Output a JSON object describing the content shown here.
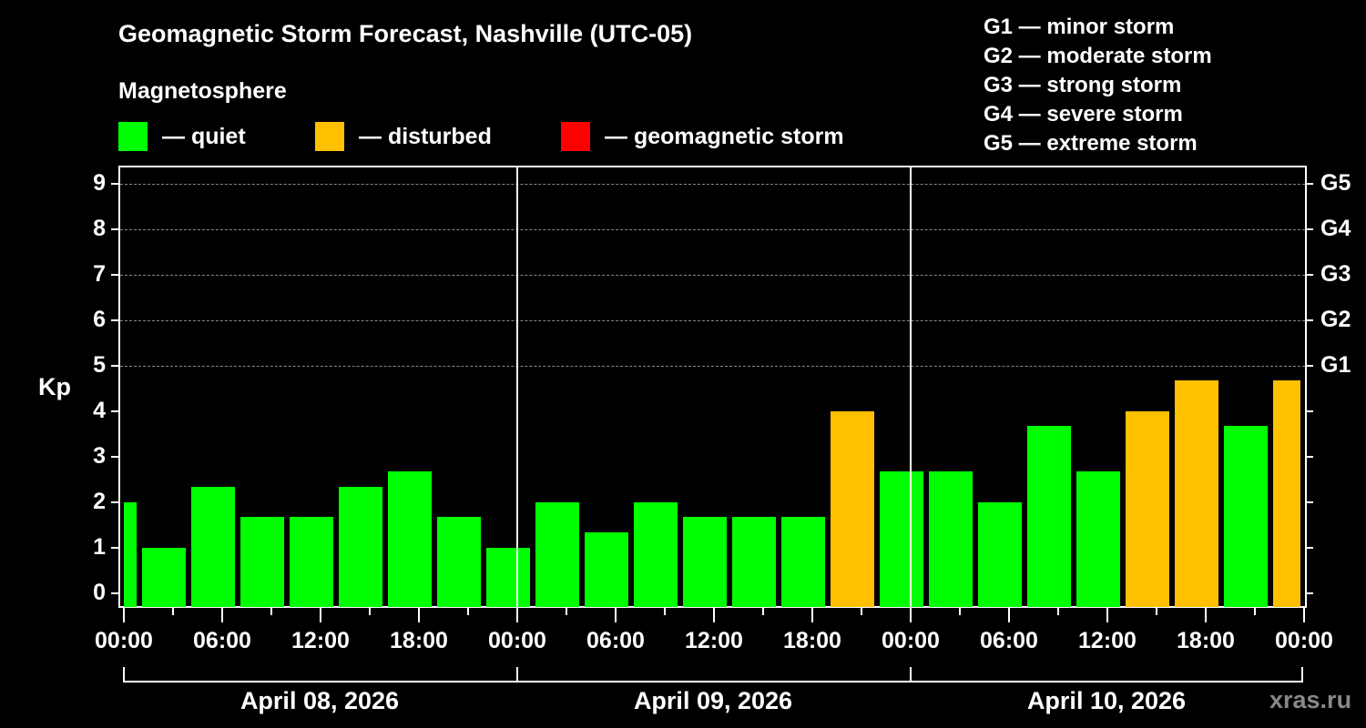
{
  "title": "Geomagnetic Storm Forecast, Nashville (UTC-05)",
  "subtitle": "Magnetosphere",
  "legend": [
    {
      "label": "— quiet",
      "color": "#00ff00"
    },
    {
      "label": "— disturbed",
      "color": "#ffc000"
    },
    {
      "label": "— geomagnetic storm",
      "color": "#ff0000"
    }
  ],
  "g_scale_legend": [
    "G1 — minor storm",
    "G2 — moderate storm",
    "G3 — strong storm",
    "G4 — severe storm",
    "G5 — extreme storm"
  ],
  "y_axis_label": "Kp",
  "watermark": "xras.ru",
  "chart_data": {
    "type": "bar",
    "title": "Geomagnetic Storm Forecast, Nashville (UTC-05)",
    "subtitle": "Magnetosphere",
    "xlabel": "",
    "ylabel": "Kp",
    "ylim": [
      0,
      9
    ],
    "yticks": [
      0,
      1,
      2,
      3,
      4,
      5,
      6,
      7,
      8,
      9
    ],
    "right_axis_ticks": [
      {
        "kp": 5,
        "label": "G1"
      },
      {
        "kp": 6,
        "label": "G2"
      },
      {
        "kp": 7,
        "label": "G3"
      },
      {
        "kp": 8,
        "label": "G4"
      },
      {
        "kp": 9,
        "label": "G5"
      }
    ],
    "grid": "dashed horizontal lines at Kp 5-9",
    "x_tick_labels": [
      "00:00",
      "06:00",
      "12:00",
      "18:00",
      "00:00",
      "06:00",
      "12:00",
      "18:00",
      "00:00",
      "06:00",
      "12:00",
      "18:00",
      "00:00"
    ],
    "dates": [
      "April 08, 2026",
      "April 09, 2026",
      "April 10, 2026"
    ],
    "legend": [
      "quiet",
      "disturbed",
      "geomagnetic storm"
    ],
    "categories": [
      "Apr08 22:30-01:30",
      "Apr08 01:30",
      "Apr08 04:30",
      "Apr08 07:30",
      "Apr08 10:30",
      "Apr08 13:30",
      "Apr08 16:30",
      "Apr08 19:30",
      "Apr08 22:30",
      "Apr09 01:30",
      "Apr09 04:30",
      "Apr09 07:30",
      "Apr09 10:30",
      "Apr09 13:30",
      "Apr09 16:30",
      "Apr09 19:30",
      "Apr09 22:30",
      "Apr10 01:30",
      "Apr10 04:30",
      "Apr10 07:30",
      "Apr10 10:30",
      "Apr10 13:30",
      "Apr10 16:30",
      "Apr10 19:30",
      "Apr10 22:30"
    ],
    "values": [
      2.0,
      1.0,
      2.33,
      1.67,
      1.67,
      2.33,
      2.67,
      1.67,
      1.0,
      2.0,
      1.33,
      2.0,
      1.67,
      1.67,
      1.67,
      4.0,
      2.67,
      2.67,
      2.0,
      3.67,
      2.67,
      4.0,
      4.67,
      3.67,
      4.67
    ],
    "status": [
      "quiet",
      "quiet",
      "quiet",
      "quiet",
      "quiet",
      "quiet",
      "quiet",
      "quiet",
      "quiet",
      "quiet",
      "quiet",
      "quiet",
      "quiet",
      "quiet",
      "quiet",
      "disturbed",
      "quiet",
      "quiet",
      "quiet",
      "quiet",
      "quiet",
      "disturbed",
      "disturbed",
      "quiet",
      "disturbed"
    ]
  }
}
